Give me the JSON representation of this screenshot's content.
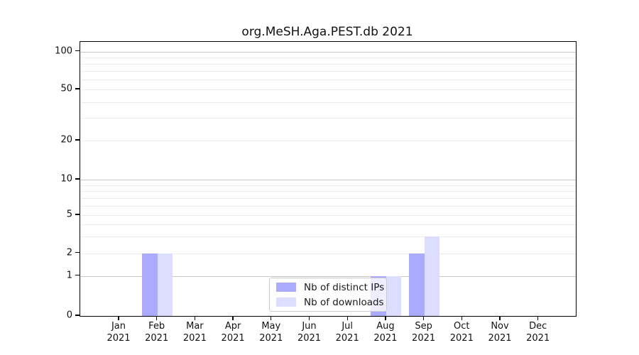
{
  "chart_data": {
    "type": "bar",
    "title": "org.MeSH.Aga.PEST.db 2021",
    "categories": [
      "Jan 2021",
      "Feb 2021",
      "Mar 2021",
      "Apr 2021",
      "May 2021",
      "Jun 2021",
      "Jul 2021",
      "Aug 2021",
      "Sep 2021",
      "Oct 2021",
      "Nov 2021",
      "Dec 2021"
    ],
    "series": [
      {
        "name": "Nb of distinct IPs",
        "color": "#aaaaff",
        "values": [
          0,
          2,
          0,
          0,
          0,
          0,
          0,
          1,
          2,
          0,
          0,
          0
        ]
      },
      {
        "name": "Nb of downloads",
        "color": "#ddddff",
        "values": [
          0,
          2,
          0,
          0,
          0,
          0,
          0,
          1,
          3,
          0,
          0,
          0
        ]
      }
    ],
    "xlabel": "",
    "ylabel": "",
    "yticks": [
      0,
      1,
      2,
      5,
      10,
      20,
      50,
      100
    ],
    "ylim": [
      0,
      110
    ],
    "yscale": "log-compressed with zero baseline",
    "grid": "horizontal major and minor gridlines",
    "legend_position": "lower center"
  },
  "colors": {
    "grid_major": "#c7c7c7",
    "grid_minor": "#ebebeb",
    "axis": "#000000",
    "legend_border": "#cccccc"
  }
}
